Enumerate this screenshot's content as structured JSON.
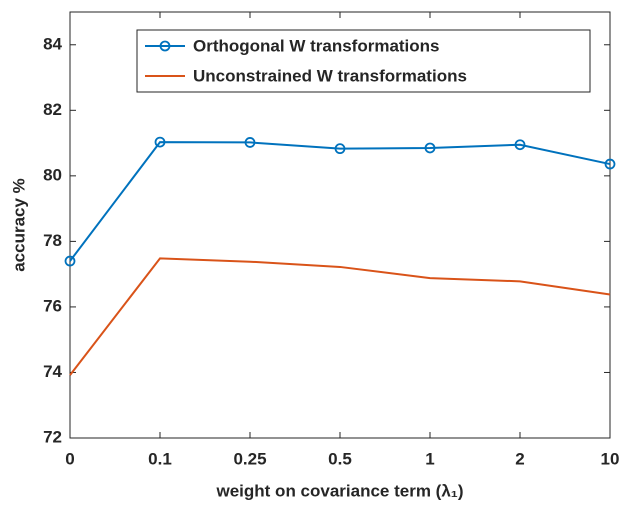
{
  "chart_data": {
    "type": "line",
    "x_label": "weight on covariance term (λ₁)",
    "y_label": "accuracy %",
    "categories": [
      "0",
      "0.1",
      "0.25",
      "0.5",
      "1",
      "2",
      "10"
    ],
    "series": [
      {
        "name": "Orthogonal W transformations",
        "color": "#0072bd",
        "marker": "o",
        "values": [
          77.4,
          81.03,
          81.02,
          80.83,
          80.85,
          80.95,
          80.36
        ]
      },
      {
        "name": "Unconstrained W transformations",
        "color": "#d95319",
        "values": [
          73.92,
          77.48,
          77.38,
          77.22,
          76.88,
          76.78,
          76.38
        ]
      }
    ],
    "ylim": [
      72,
      85
    ],
    "yticks": [
      72,
      74,
      76,
      78,
      80,
      82,
      84
    ],
    "legend": "upper right",
    "grid": false
  }
}
